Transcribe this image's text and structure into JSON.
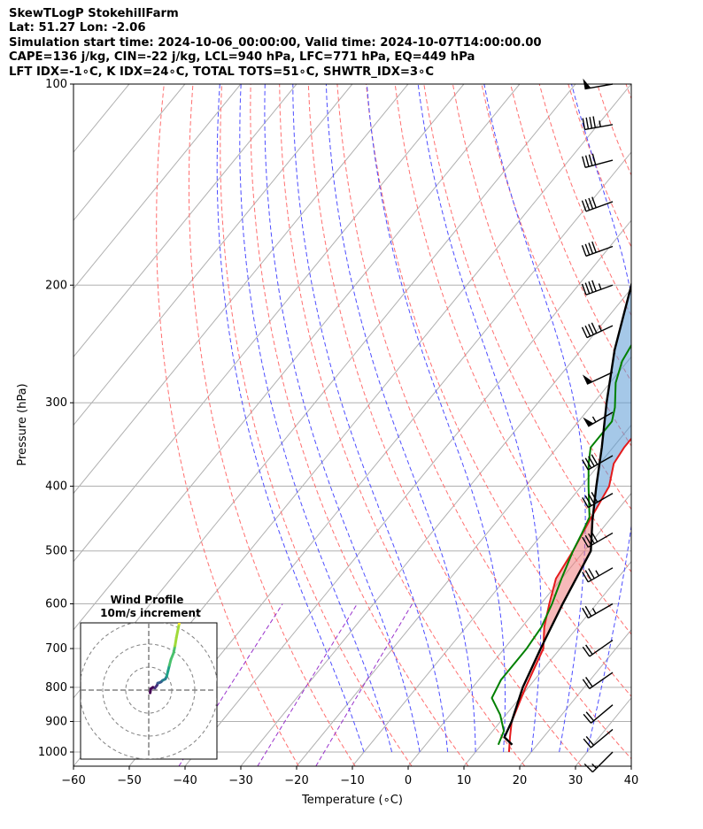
{
  "header": {
    "line1": "SkewTLogP StokehillFarm",
    "line2": "Lat: 51.27   Lon: -2.06",
    "line3": "Simulation start time: 2024-10-06_00:00:00, Valid time: 2024-10-07T14:00:00.00",
    "line4": "CAPE=136 j/kg, CIN=-22 j/kg, LCL=940 hPa, LFC=771 hPa, EQ=449 hPa",
    "line5": "LFT IDX=-1∘C, K IDX=24∘C, TOTAL TOTS=51∘C, SHWTR_IDX=3∘C"
  },
  "chart_data": {
    "type": "line",
    "subtype": "skew-T log-P diagram",
    "xlabel": "Temperature (∘C)",
    "ylabel": "Pressure (hPa)",
    "xlim": [
      -60,
      40
    ],
    "ylim": [
      1050,
      100
    ],
    "y_scale": "log",
    "x_ticks": [
      "−60",
      "−50",
      "−40",
      "−30",
      "−20",
      "−10",
      "0",
      "10",
      "20",
      "30",
      "40"
    ],
    "y_ticks": [
      "100",
      "200",
      "300",
      "400",
      "500",
      "600",
      "700",
      "800",
      "900",
      "1000"
    ],
    "grid": true,
    "series": [
      {
        "color": "#e41a1c",
        "points": [
          [
            16,
            1000
          ],
          [
            14,
            950
          ],
          [
            12,
            900
          ],
          [
            9.5,
            800
          ],
          [
            7,
            700
          ],
          [
            4,
            650
          ],
          [
            1.5,
            600
          ],
          [
            -1,
            550
          ],
          [
            -2,
            500
          ],
          [
            -3.5,
            450
          ],
          [
            -5,
            400
          ],
          [
            -7.5,
            370
          ],
          [
            -8,
            350
          ],
          [
            -8,
            330
          ],
          [
            -7.5,
            310
          ],
          [
            -7,
            290
          ],
          [
            -6,
            270
          ],
          [
            -5,
            245
          ],
          [
            -4,
            230
          ],
          [
            -2.6,
            205
          ],
          [
            -1,
            195
          ],
          [
            1,
            180
          ],
          [
            2,
            170
          ],
          [
            2.7,
            160
          ],
          [
            3.5,
            150
          ],
          [
            4.7,
            140
          ],
          [
            6.5,
            130
          ],
          [
            8,
            120
          ],
          [
            9.5,
            110
          ],
          [
            10.5,
            100
          ]
        ]
      },
      {
        "color": "#008000",
        "points": [
          [
            13,
            975
          ],
          [
            12,
            930
          ],
          [
            9,
            880
          ],
          [
            5,
            830
          ],
          [
            4,
            780
          ],
          [
            4,
            700
          ],
          [
            3.5,
            650
          ],
          [
            2,
            600
          ],
          [
            0,
            550
          ],
          [
            -2,
            500
          ],
          [
            -3,
            470
          ],
          [
            -4,
            445
          ],
          [
            -8.7,
            400
          ],
          [
            -12,
            370
          ],
          [
            -14,
            350
          ],
          [
            -14,
            320
          ],
          [
            -15.5,
            305
          ],
          [
            -19,
            280
          ],
          [
            -21,
            260
          ],
          [
            -22,
            240
          ],
          [
            -21.4,
            205
          ],
          [
            -22.5,
            180
          ],
          [
            -23,
            170
          ],
          [
            -21,
            160
          ],
          [
            -19.5,
            150
          ],
          [
            -14,
            130
          ],
          [
            -9,
            110
          ],
          [
            -7,
            100
          ]
        ]
      },
      {
        "color": "#000000",
        "points": [
          [
            15.5,
            975
          ],
          [
            13,
            950
          ],
          [
            12,
            900
          ],
          [
            9,
            800
          ],
          [
            6.5,
            700
          ],
          [
            3.9,
            600
          ],
          [
            1.2,
            500
          ],
          [
            -3,
            450
          ],
          [
            -7.3,
            400
          ],
          [
            -12,
            350
          ],
          [
            -17.7,
            300
          ],
          [
            -24,
            250
          ],
          [
            -30.5,
            200
          ],
          [
            -36.5,
            165
          ],
          [
            -45,
            130
          ],
          [
            -52,
            110
          ],
          [
            -56,
            100
          ]
        ]
      }
    ],
    "dry_adiabats_theta_k": [
      250,
      260,
      270,
      280,
      290,
      300,
      310,
      320,
      330,
      340,
      350,
      360,
      370,
      380,
      390,
      400,
      410,
      420,
      430,
      440,
      450
    ],
    "moist_adiabats_theta_c": [
      -10,
      -5,
      0,
      5,
      10,
      15,
      20,
      25,
      30
    ],
    "mixing_ratio_lines_gkg": [
      0.1,
      0.4,
      1,
      2,
      4,
      7,
      10,
      16,
      24
    ],
    "wind_barbs": [
      {
        "pressure": 100,
        "speed_kt": 50,
        "dir_deg": 260
      },
      {
        "pressure": 115,
        "speed_kt": 45,
        "dir_deg": 260
      },
      {
        "pressure": 130,
        "speed_kt": 40,
        "dir_deg": 255
      },
      {
        "pressure": 150,
        "speed_kt": 40,
        "dir_deg": 250
      },
      {
        "pressure": 175,
        "speed_kt": 40,
        "dir_deg": 250
      },
      {
        "pressure": 200,
        "speed_kt": 45,
        "dir_deg": 250
      },
      {
        "pressure": 230,
        "speed_kt": 45,
        "dir_deg": 245
      },
      {
        "pressure": 270,
        "speed_kt": 50,
        "dir_deg": 245
      },
      {
        "pressure": 310,
        "speed_kt": 55,
        "dir_deg": 240
      },
      {
        "pressure": 360,
        "speed_kt": 40,
        "dir_deg": 240
      },
      {
        "pressure": 410,
        "speed_kt": 40,
        "dir_deg": 240
      },
      {
        "pressure": 470,
        "speed_kt": 40,
        "dir_deg": 240
      },
      {
        "pressure": 530,
        "speed_kt": 35,
        "dir_deg": 240
      },
      {
        "pressure": 600,
        "speed_kt": 25,
        "dir_deg": 240
      },
      {
        "pressure": 680,
        "speed_kt": 20,
        "dir_deg": 235
      },
      {
        "pressure": 760,
        "speed_kt": 20,
        "dir_deg": 235
      },
      {
        "pressure": 850,
        "speed_kt": 20,
        "dir_deg": 230
      },
      {
        "pressure": 925,
        "speed_kt": 20,
        "dir_deg": 230
      },
      {
        "pressure": 1000,
        "speed_kt": 15,
        "dir_deg": 225
      }
    ],
    "inset": {
      "title": "Wind Profile",
      "subtitle": "10m/s increment",
      "type": "hodograph",
      "rings_ms": [
        10,
        20,
        30
      ],
      "trace_uv_ms": [
        [
          1,
          -2
        ],
        [
          1.5,
          1
        ],
        [
          3,
          2
        ],
        [
          4.5,
          1.5
        ],
        [
          6,
          3.5
        ],
        [
          6.5,
          5
        ],
        [
          8,
          5.5
        ],
        [
          9,
          6
        ],
        [
          10,
          7
        ],
        [
          12,
          8
        ],
        [
          13,
          10
        ],
        [
          14,
          14
        ],
        [
          15,
          18
        ],
        [
          16,
          22
        ],
        [
          18,
          27
        ],
        [
          19,
          32
        ],
        [
          20,
          38
        ],
        [
          22,
          48
        ],
        [
          24,
          58
        ],
        [
          24,
          60
        ]
      ]
    }
  }
}
